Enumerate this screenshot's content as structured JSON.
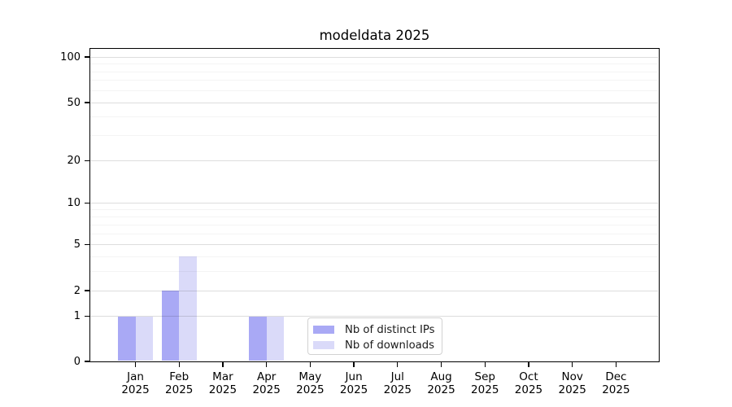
{
  "figure": {
    "background_color": "#ffffff"
  },
  "chart_data": {
    "type": "bar",
    "title": "modeldata 2025",
    "xlabel": "",
    "ylabel": "",
    "yscale": "log1p",
    "grid": "horizontal",
    "y_axis": {
      "major_ticks": [
        0,
        1,
        2,
        5,
        10,
        20,
        50,
        100
      ],
      "minor_gridline_values": [
        3,
        4,
        6,
        7,
        8,
        9,
        30,
        40,
        60,
        70,
        80,
        90
      ],
      "ylim": [
        0,
        112
      ]
    },
    "x_categories": [
      {
        "month": "Jan",
        "year": "2025"
      },
      {
        "month": "Feb",
        "year": "2025"
      },
      {
        "month": "Mar",
        "year": "2025"
      },
      {
        "month": "Apr",
        "year": "2025"
      },
      {
        "month": "May",
        "year": "2025"
      },
      {
        "month": "Jun",
        "year": "2025"
      },
      {
        "month": "Jul",
        "year": "2025"
      },
      {
        "month": "Aug",
        "year": "2025"
      },
      {
        "month": "Sep",
        "year": "2025"
      },
      {
        "month": "Oct",
        "year": "2025"
      },
      {
        "month": "Nov",
        "year": "2025"
      },
      {
        "month": "Dec",
        "year": "2025"
      }
    ],
    "series": [
      {
        "name": "Nb of distinct IPs",
        "color": "#a9a9f5",
        "values": [
          1,
          2,
          0,
          1,
          0,
          0,
          0,
          0,
          0,
          0,
          0,
          0
        ]
      },
      {
        "name": "Nb of downloads",
        "color": "#dadaf9",
        "values": [
          1,
          4,
          0,
          1,
          0,
          0,
          0,
          0,
          0,
          0,
          0,
          0
        ]
      }
    ],
    "legend": {
      "position": "lower center-left inside plot",
      "items": [
        "Nb of distinct IPs",
        "Nb of downloads"
      ]
    },
    "colors": {
      "axis_spine": "#000000",
      "major_grid": "#dcdcdc",
      "minor_grid": "#f5f5f5"
    }
  }
}
